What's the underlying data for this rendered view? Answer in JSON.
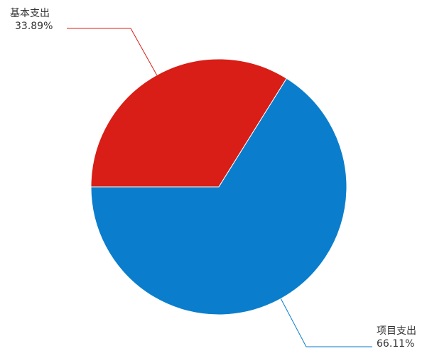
{
  "chart_data": {
    "type": "pie",
    "title": "",
    "slices": [
      {
        "name": "基本支出",
        "percent_label": "33.89%",
        "value": 33.89,
        "color": "#d81e16"
      },
      {
        "name": "项目支出",
        "percent_label": "66.11%",
        "value": 66.11,
        "color": "#0a7ecc"
      }
    ],
    "start_angle_deg": 180,
    "direction": "clockwise",
    "legend": "none"
  }
}
